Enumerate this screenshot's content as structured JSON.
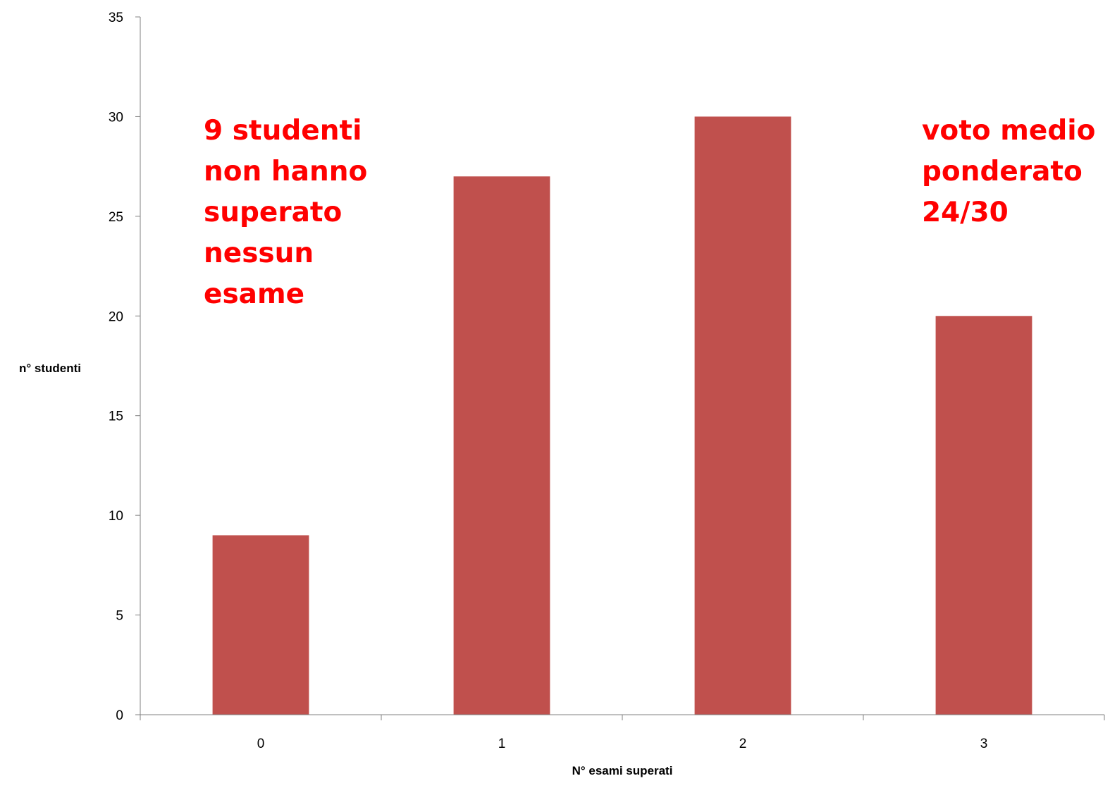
{
  "chart_data": {
    "type": "bar",
    "title": "",
    "xlabel": "N° esami superati",
    "ylabel": "n° studenti",
    "categories": [
      "0",
      "1",
      "2",
      "3"
    ],
    "values": [
      9,
      27,
      30,
      20
    ],
    "ylim": [
      0,
      35
    ],
    "yticks": [
      0,
      5,
      10,
      15,
      20,
      25,
      30,
      35
    ],
    "grid": false,
    "legend": "none",
    "bar_color": "#C0504D",
    "axis_color": "#808080"
  },
  "annotations": {
    "left": {
      "lines": [
        "9 studenti",
        "non hanno",
        "superato",
        "nessun",
        "esame"
      ],
      "color": "#FF0000"
    },
    "right": {
      "lines": [
        "voto medio",
        "ponderato",
        "24/30"
      ],
      "color": "#FF0000"
    }
  }
}
